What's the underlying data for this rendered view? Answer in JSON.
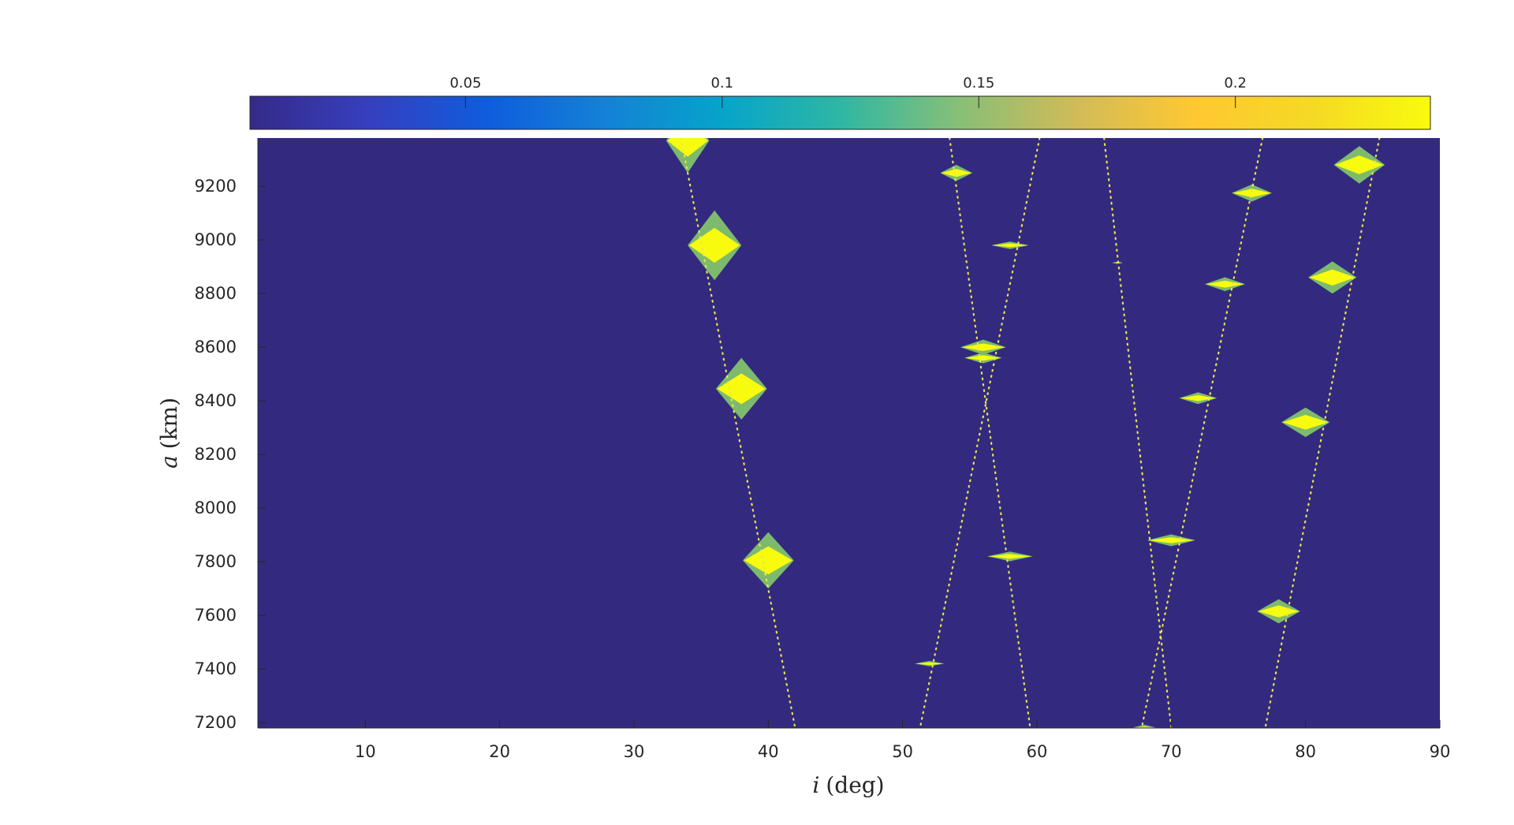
{
  "chart_data": {
    "type": "heatmap",
    "title": "",
    "xlabel": {
      "symbol": "i",
      "unit": "(deg)"
    },
    "ylabel": {
      "symbol": "a",
      "unit": "(km)"
    },
    "xlim": [
      2,
      90
    ],
    "ylim": [
      7180,
      9380
    ],
    "x_ticks": [
      10,
      20,
      30,
      40,
      50,
      60,
      70,
      80,
      90
    ],
    "y_ticks": [
      7200,
      7400,
      7600,
      7800,
      8000,
      8200,
      8400,
      8600,
      8800,
      9000,
      9200
    ],
    "colorbar": {
      "location": "top",
      "range": [
        0.008,
        0.238
      ],
      "ticks": [
        0.05,
        0.1,
        0.15,
        0.2
      ],
      "tick_labels": [
        "0.05",
        "0.1",
        "0.15",
        "0.2"
      ],
      "colormap": "parula"
    },
    "background_value": 0.008,
    "colors": {
      "background": "#332A80",
      "halo": "#7DBA6E",
      "core": "#F9FB0E",
      "curve": "#E8E64A"
    },
    "resonance_curves": [
      {
        "name": "curve-1",
        "points": [
          [
            33.5,
            9380
          ],
          [
            42,
            7180
          ]
        ]
      },
      {
        "name": "curve-2",
        "points": [
          [
            53.5,
            9380
          ],
          [
            59.5,
            7180
          ]
        ]
      },
      {
        "name": "curve-3",
        "points": [
          [
            60.2,
            9380
          ],
          [
            51.3,
            7180
          ]
        ]
      },
      {
        "name": "curve-4",
        "points": [
          [
            65,
            9380
          ],
          [
            70,
            7180
          ]
        ]
      },
      {
        "name": "curve-5",
        "points": [
          [
            76.8,
            9380
          ],
          [
            67.8,
            7180
          ]
        ]
      },
      {
        "name": "curve-6",
        "points": [
          [
            85.5,
            9380
          ],
          [
            77,
            7180
          ]
        ]
      }
    ],
    "peaks": [
      {
        "i": 34,
        "a": 9370,
        "w": 1.6,
        "h": 120,
        "value": 0.238
      },
      {
        "i": 36,
        "a": 8980,
        "w": 2.0,
        "h": 130,
        "value": 0.238
      },
      {
        "i": 38,
        "a": 8445,
        "w": 1.9,
        "h": 115,
        "value": 0.238
      },
      {
        "i": 40,
        "a": 7805,
        "w": 1.9,
        "h": 105,
        "value": 0.238
      },
      {
        "i": 52,
        "a": 7420,
        "w": 1.1,
        "h": 10,
        "value": 0.22
      },
      {
        "i": 54,
        "a": 9250,
        "w": 1.2,
        "h": 30,
        "value": 0.22
      },
      {
        "i": 56,
        "a": 8600,
        "w": 1.7,
        "h": 28,
        "value": 0.238
      },
      {
        "i": 56,
        "a": 8560,
        "w": 1.4,
        "h": 20,
        "value": 0.23
      },
      {
        "i": 58,
        "a": 8980,
        "w": 1.4,
        "h": 14,
        "value": 0.238
      },
      {
        "i": 58,
        "a": 7820,
        "w": 1.7,
        "h": 18,
        "value": 0.238
      },
      {
        "i": 66,
        "a": 8915,
        "w": 0.4,
        "h": 4,
        "value": 0.2
      },
      {
        "i": 68,
        "a": 7180,
        "w": 1.0,
        "h": 12,
        "value": 0.2
      },
      {
        "i": 70,
        "a": 7880,
        "w": 1.8,
        "h": 22,
        "value": 0.238
      },
      {
        "i": 72,
        "a": 8410,
        "w": 1.4,
        "h": 22,
        "value": 0.23
      },
      {
        "i": 74,
        "a": 8835,
        "w": 1.5,
        "h": 26,
        "value": 0.23
      },
      {
        "i": 76,
        "a": 9175,
        "w": 1.5,
        "h": 32,
        "value": 0.23
      },
      {
        "i": 78,
        "a": 7615,
        "w": 1.6,
        "h": 45,
        "value": 0.23
      },
      {
        "i": 80,
        "a": 8320,
        "w": 1.8,
        "h": 55,
        "value": 0.23
      },
      {
        "i": 82,
        "a": 8860,
        "w": 1.8,
        "h": 60,
        "value": 0.238
      },
      {
        "i": 84,
        "a": 9280,
        "w": 1.9,
        "h": 70,
        "value": 0.238
      }
    ]
  }
}
